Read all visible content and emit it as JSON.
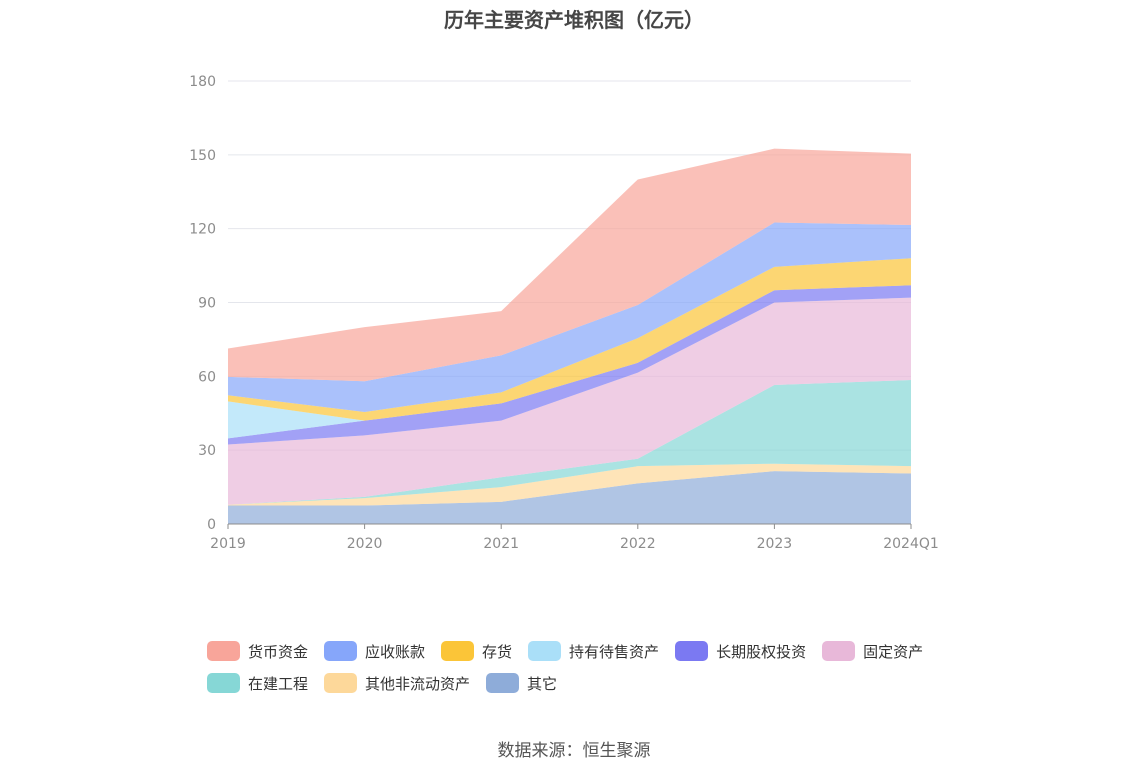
{
  "chart_data": {
    "type": "area",
    "stacked": true,
    "title": "历年主要资产堆积图（亿元）",
    "categories": [
      "2019",
      "2020",
      "2021",
      "2022",
      "2023",
      "2024Q1"
    ],
    "ylim": [
      0,
      180
    ],
    "yticks": [
      0,
      30,
      60,
      90,
      120,
      150,
      180
    ],
    "grid": true,
    "legend_position": "bottom",
    "series": [
      {
        "name": "其它",
        "color": "#8eacd9",
        "values": [
          7.5,
          7.5,
          9.0,
          16.5,
          21.5,
          20.5
        ]
      },
      {
        "name": "其他非流动资产",
        "color": "#fdd89a",
        "values": [
          0.3,
          3.0,
          6.0,
          7.0,
          3.0,
          3.0
        ]
      },
      {
        "name": "在建工程",
        "color": "#86d7d6",
        "values": [
          0.0,
          0.5,
          4.0,
          3.0,
          32.0,
          35.0
        ]
      },
      {
        "name": "固定资产",
        "color": "#e8b8d9",
        "values": [
          24.5,
          25.0,
          23.0,
          35.0,
          33.5,
          33.5
        ]
      },
      {
        "name": "长期股权投资",
        "color": "#7b79f2",
        "values": [
          2.5,
          6.0,
          7.0,
          4.0,
          5.0,
          5.0
        ]
      },
      {
        "name": "持有待售资产",
        "color": "#aadff8",
        "values": [
          15.0,
          0.0,
          0.0,
          0.0,
          0.0,
          0.0
        ]
      },
      {
        "name": "存货",
        "color": "#fbc538",
        "values": [
          2.5,
          3.5,
          4.5,
          10.0,
          9.5,
          11.0
        ]
      },
      {
        "name": "应收账款",
        "color": "#86a6fa",
        "values": [
          7.5,
          12.5,
          15.0,
          13.5,
          18.0,
          13.5
        ]
      },
      {
        "name": "货币资金",
        "color": "#f8a59a",
        "values": [
          11.5,
          22.0,
          18.0,
          51.0,
          30.0,
          29.0
        ]
      }
    ],
    "legend_order": [
      "货币资金",
      "应收账款",
      "存货",
      "持有待售资产",
      "长期股权投资",
      "固定资产",
      "在建工程",
      "其他非流动资产",
      "其它"
    ]
  },
  "source": "数据来源：恒生聚源"
}
